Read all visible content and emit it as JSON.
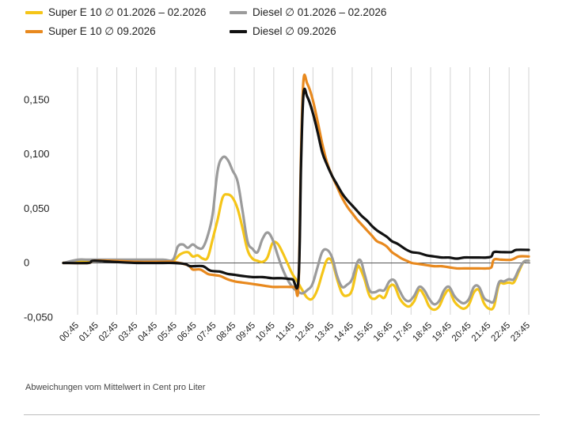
{
  "legend": {
    "items": [
      {
        "label": "Super E  10 ∅ 01.2026 – 02.2026",
        "color": "#f5c518"
      },
      {
        "label": "Diesel ∅ 01.2026 – 02.2026",
        "color": "#9b9b9b"
      },
      {
        "label": "Super E  10 ∅ 09.2026",
        "color": "#e8891e"
      },
      {
        "label": "Diesel ∅ 09.2026",
        "color": "#111111"
      }
    ]
  },
  "footer": {
    "note": "Abweichungen vom Mittelwert in Cent pro Liter"
  },
  "chart_data": {
    "type": "line",
    "x": [
      "00:45",
      "01:45",
      "02:45",
      "03:45",
      "04:45",
      "05:45",
      "06:45",
      "07:45",
      "08:45",
      "09:45",
      "10:45",
      "11:45",
      "12:45",
      "13:45",
      "14:45",
      "15:45",
      "16:45",
      "17:45",
      "18:45",
      "19:45",
      "20:45",
      "21:45",
      "22:45",
      "23:45"
    ],
    "xlabel": "",
    "ylabel": "",
    "ylim": [
      -0.06,
      0.18
    ],
    "yticks": [
      -0.05,
      0,
      0.05,
      0.1,
      0.15
    ],
    "yticklabels": [
      "-0,050",
      "0",
      "0,050",
      "0,100",
      "0,150"
    ],
    "grid": "vertical",
    "legend_position": "top",
    "series": [
      {
        "name": "Super E  10 ∅ 01.2026 – 02.2026",
        "color": "#f5c518",
        "points": [
          [
            0,
            0
          ],
          [
            1,
            0.002
          ],
          [
            2,
            0.002
          ],
          [
            3,
            0.002
          ],
          [
            4,
            0.002
          ],
          [
            4.4,
            0.002
          ],
          [
            4.7,
            0.008
          ],
          [
            5,
            0.01
          ],
          [
            5.2,
            0.006
          ],
          [
            5.4,
            0.007
          ],
          [
            5.6,
            0.004
          ],
          [
            5.8,
            0.005
          ],
          [
            6,
            0.022
          ],
          [
            6.2,
            0.04
          ],
          [
            6.4,
            0.06
          ],
          [
            6.6,
            0.063
          ],
          [
            6.8,
            0.06
          ],
          [
            7,
            0.05
          ],
          [
            7.2,
            0.032
          ],
          [
            7.4,
            0.012
          ],
          [
            7.6,
            0.004
          ],
          [
            7.8,
            0.002
          ],
          [
            8,
            0.001
          ],
          [
            8.2,
            0.005
          ],
          [
            8.4,
            0.018
          ],
          [
            8.6,
            0.018
          ],
          [
            8.8,
            0.01
          ],
          [
            9,
            0
          ],
          [
            9.2,
            -0.01
          ],
          [
            9.4,
            -0.017
          ],
          [
            9.6,
            -0.025
          ],
          [
            9.8,
            -0.032
          ],
          [
            10,
            -0.033
          ],
          [
            10.2,
            -0.025
          ],
          [
            10.4,
            -0.01
          ],
          [
            10.6,
            0.003
          ],
          [
            10.8,
            0.001
          ],
          [
            11,
            -0.015
          ],
          [
            11.2,
            -0.028
          ],
          [
            11.4,
            -0.03
          ],
          [
            11.6,
            -0.025
          ],
          [
            11.8,
            -0.005
          ],
          [
            11.9,
            -0.004
          ],
          [
            12.1,
            -0.015
          ],
          [
            12.3,
            -0.03
          ],
          [
            12.5,
            -0.033
          ],
          [
            12.7,
            -0.03
          ],
          [
            12.9,
            -0.032
          ],
          [
            13.1,
            -0.022
          ],
          [
            13.3,
            -0.021
          ],
          [
            13.5,
            -0.032
          ],
          [
            13.7,
            -0.038
          ],
          [
            13.9,
            -0.04
          ],
          [
            14.1,
            -0.035
          ],
          [
            14.3,
            -0.025
          ],
          [
            14.5,
            -0.03
          ],
          [
            14.7,
            -0.04
          ],
          [
            14.9,
            -0.043
          ],
          [
            15.1,
            -0.04
          ],
          [
            15.3,
            -0.03
          ],
          [
            15.5,
            -0.025
          ],
          [
            15.7,
            -0.035
          ],
          [
            15.9,
            -0.04
          ],
          [
            16.1,
            -0.042
          ],
          [
            16.3,
            -0.038
          ],
          [
            16.5,
            -0.027
          ],
          [
            16.7,
            -0.025
          ],
          [
            16.9,
            -0.037
          ],
          [
            17.1,
            -0.042
          ],
          [
            17.3,
            -0.04
          ],
          [
            17.5,
            -0.02
          ],
          [
            17.7,
            -0.019
          ],
          [
            17.9,
            -0.018
          ],
          [
            18.1,
            -0.018
          ],
          [
            18.3,
            -0.008
          ],
          [
            18.5,
            0.001
          ],
          [
            18.7,
            0.002
          ]
        ]
      },
      {
        "name": "Diesel ∅ 01.2026 – 02.2026",
        "color": "#9b9b9b",
        "points": [
          [
            0,
            0
          ],
          [
            0.6,
            0.003
          ],
          [
            1,
            0.003
          ],
          [
            2,
            0.003
          ],
          [
            3,
            0.003
          ],
          [
            4,
            0.003
          ],
          [
            4.4,
            0.003
          ],
          [
            4.6,
            0.015
          ],
          [
            4.8,
            0.017
          ],
          [
            5,
            0.014
          ],
          [
            5.2,
            0.017
          ],
          [
            5.4,
            0.014
          ],
          [
            5.6,
            0.014
          ],
          [
            5.8,
            0.025
          ],
          [
            6,
            0.045
          ],
          [
            6.2,
            0.085
          ],
          [
            6.4,
            0.097
          ],
          [
            6.6,
            0.095
          ],
          [
            6.8,
            0.085
          ],
          [
            7,
            0.075
          ],
          [
            7.2,
            0.048
          ],
          [
            7.4,
            0.02
          ],
          [
            7.6,
            0.013
          ],
          [
            7.8,
            0.01
          ],
          [
            8,
            0.022
          ],
          [
            8.2,
            0.028
          ],
          [
            8.4,
            0.022
          ],
          [
            8.6,
            0.008
          ],
          [
            8.8,
            -0.005
          ],
          [
            9,
            -0.015
          ],
          [
            9.2,
            -0.022
          ],
          [
            9.4,
            -0.026
          ],
          [
            9.6,
            -0.028
          ],
          [
            9.8,
            -0.025
          ],
          [
            10,
            -0.02
          ],
          [
            10.2,
            -0.005
          ],
          [
            10.4,
            0.01
          ],
          [
            10.6,
            0.012
          ],
          [
            10.8,
            0.005
          ],
          [
            11,
            -0.012
          ],
          [
            11.2,
            -0.022
          ],
          [
            11.4,
            -0.02
          ],
          [
            11.6,
            -0.015
          ],
          [
            11.8,
            0.0
          ],
          [
            11.95,
            0.002
          ],
          [
            12.1,
            -0.01
          ],
          [
            12.3,
            -0.025
          ],
          [
            12.5,
            -0.027
          ],
          [
            12.7,
            -0.025
          ],
          [
            12.9,
            -0.025
          ],
          [
            13.1,
            -0.017
          ],
          [
            13.3,
            -0.016
          ],
          [
            13.5,
            -0.025
          ],
          [
            13.7,
            -0.033
          ],
          [
            13.9,
            -0.035
          ],
          [
            14.1,
            -0.03
          ],
          [
            14.3,
            -0.022
          ],
          [
            14.5,
            -0.025
          ],
          [
            14.7,
            -0.033
          ],
          [
            14.9,
            -0.038
          ],
          [
            15.1,
            -0.035
          ],
          [
            15.3,
            -0.025
          ],
          [
            15.5,
            -0.022
          ],
          [
            15.7,
            -0.03
          ],
          [
            15.9,
            -0.035
          ],
          [
            16.1,
            -0.037
          ],
          [
            16.3,
            -0.033
          ],
          [
            16.5,
            -0.022
          ],
          [
            16.7,
            -0.022
          ],
          [
            16.9,
            -0.032
          ],
          [
            17.1,
            -0.035
          ],
          [
            17.3,
            -0.035
          ],
          [
            17.5,
            -0.018
          ],
          [
            17.7,
            -0.017
          ],
          [
            17.9,
            -0.015
          ],
          [
            18.1,
            -0.015
          ],
          [
            18.3,
            -0.006
          ],
          [
            18.5,
            0.001
          ],
          [
            18.7,
            0.002
          ]
        ]
      },
      {
        "name": "Super E  10 ∅ 09.2026",
        "color": "#e8891e",
        "points": [
          [
            0,
            0
          ],
          [
            1,
            0
          ],
          [
            1.2,
            0.002
          ],
          [
            2,
            0.002
          ],
          [
            3,
            0.001
          ],
          [
            4,
            0.001
          ],
          [
            4.4,
            0.001
          ],
          [
            5,
            -0.002
          ],
          [
            5.2,
            -0.006
          ],
          [
            5.5,
            -0.006
          ],
          [
            5.8,
            -0.01
          ],
          [
            6,
            -0.011
          ],
          [
            6.3,
            -0.012
          ],
          [
            6.6,
            -0.015
          ],
          [
            6.9,
            -0.017
          ],
          [
            7.2,
            -0.018
          ],
          [
            7.5,
            -0.019
          ],
          [
            7.8,
            -0.02
          ],
          [
            8.1,
            -0.021
          ],
          [
            8.4,
            -0.022
          ],
          [
            8.7,
            -0.022
          ],
          [
            9,
            -0.022
          ],
          [
            9.3,
            -0.022
          ],
          [
            9.45,
            -0.02
          ],
          [
            9.55,
            0.1
          ],
          [
            9.65,
            0.168
          ],
          [
            9.8,
            0.165
          ],
          [
            10,
            0.152
          ],
          [
            10.2,
            0.132
          ],
          [
            10.4,
            0.11
          ],
          [
            10.6,
            0.092
          ],
          [
            10.8,
            0.08
          ],
          [
            11,
            0.07
          ],
          [
            11.2,
            0.06
          ],
          [
            11.4,
            0.052
          ],
          [
            11.6,
            0.046
          ],
          [
            11.8,
            0.04
          ],
          [
            12,
            0.035
          ],
          [
            12.2,
            0.03
          ],
          [
            12.4,
            0.025
          ],
          [
            12.6,
            0.02
          ],
          [
            12.8,
            0.018
          ],
          [
            13,
            0.015
          ],
          [
            13.2,
            0.01
          ],
          [
            13.4,
            0.007
          ],
          [
            13.6,
            0.004
          ],
          [
            13.8,
            0.002
          ],
          [
            14,
            0
          ],
          [
            14.3,
            -0.001
          ],
          [
            14.6,
            -0.002
          ],
          [
            14.9,
            -0.003
          ],
          [
            15.2,
            -0.003
          ],
          [
            15.5,
            -0.004
          ],
          [
            15.8,
            -0.005
          ],
          [
            16.1,
            -0.005
          ],
          [
            16.4,
            -0.005
          ],
          [
            16.7,
            -0.005
          ],
          [
            17,
            -0.005
          ],
          [
            17.2,
            -0.004
          ],
          [
            17.3,
            0.003
          ],
          [
            17.6,
            0.003
          ],
          [
            18,
            0.003
          ],
          [
            18.3,
            0.006
          ],
          [
            18.7,
            0.006
          ]
        ]
      },
      {
        "name": "Diesel ∅ 09.2026",
        "color": "#111111",
        "points": [
          [
            0,
            0
          ],
          [
            1,
            0
          ],
          [
            1.2,
            0.002
          ],
          [
            2,
            0.001
          ],
          [
            3,
            0
          ],
          [
            4,
            0
          ],
          [
            4.4,
            0
          ],
          [
            4.9,
            -0.001
          ],
          [
            5.1,
            -0.003
          ],
          [
            5.6,
            -0.003
          ],
          [
            5.9,
            -0.007
          ],
          [
            6.3,
            -0.008
          ],
          [
            6.6,
            -0.01
          ],
          [
            6.9,
            -0.011
          ],
          [
            7.2,
            -0.012
          ],
          [
            7.6,
            -0.013
          ],
          [
            8,
            -0.013
          ],
          [
            8.4,
            -0.014
          ],
          [
            8.8,
            -0.014
          ],
          [
            9.2,
            -0.015
          ],
          [
            9.45,
            -0.015
          ],
          [
            9.55,
            0.09
          ],
          [
            9.65,
            0.155
          ],
          [
            9.8,
            0.153
          ],
          [
            10,
            0.14
          ],
          [
            10.2,
            0.122
          ],
          [
            10.4,
            0.102
          ],
          [
            10.6,
            0.09
          ],
          [
            10.8,
            0.08
          ],
          [
            11,
            0.072
          ],
          [
            11.2,
            0.064
          ],
          [
            11.4,
            0.058
          ],
          [
            11.6,
            0.053
          ],
          [
            11.8,
            0.048
          ],
          [
            12,
            0.043
          ],
          [
            12.2,
            0.039
          ],
          [
            12.4,
            0.034
          ],
          [
            12.6,
            0.03
          ],
          [
            12.8,
            0.027
          ],
          [
            13,
            0.024
          ],
          [
            13.2,
            0.02
          ],
          [
            13.4,
            0.018
          ],
          [
            13.6,
            0.015
          ],
          [
            13.8,
            0.012
          ],
          [
            14,
            0.01
          ],
          [
            14.3,
            0.009
          ],
          [
            14.6,
            0.007
          ],
          [
            14.9,
            0.006
          ],
          [
            15.2,
            0.005
          ],
          [
            15.5,
            0.005
          ],
          [
            15.8,
            0.004
          ],
          [
            16.1,
            0.005
          ],
          [
            16.4,
            0.005
          ],
          [
            16.7,
            0.005
          ],
          [
            17,
            0.005
          ],
          [
            17.2,
            0.006
          ],
          [
            17.3,
            0.01
          ],
          [
            17.6,
            0.01
          ],
          [
            18,
            0.01
          ],
          [
            18.2,
            0.012
          ],
          [
            18.7,
            0.012
          ]
        ]
      }
    ]
  }
}
